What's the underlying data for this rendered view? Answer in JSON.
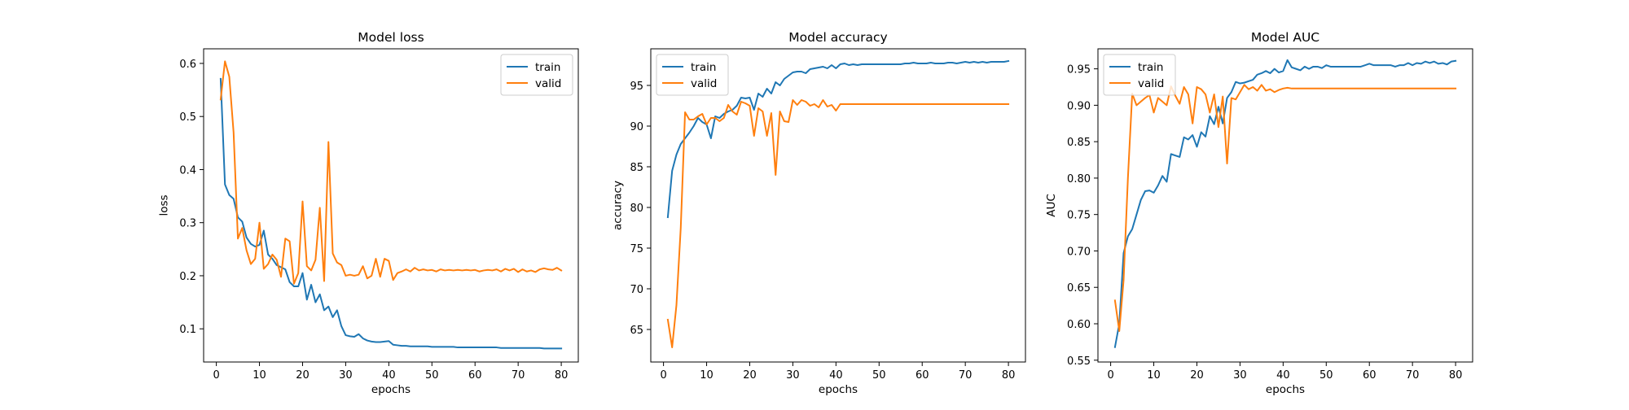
{
  "chart_data": [
    {
      "type": "line",
      "title": "Model loss",
      "xlabel": "epochs",
      "ylabel": "loss",
      "xlim": [
        -2.95,
        83.95
      ],
      "ylim": [
        0.0375,
        0.6275
      ],
      "xticks": [
        0,
        10,
        20,
        30,
        40,
        50,
        60,
        70,
        80
      ],
      "yticks": [
        0.1,
        0.2,
        0.3,
        0.4,
        0.5,
        0.6
      ],
      "ytick_labels": [
        "0.1",
        "0.2",
        "0.3",
        "0.4",
        "0.5",
        "0.6"
      ],
      "legend_position": "upper right",
      "grid": false,
      "x": [
        1,
        2,
        3,
        4,
        5,
        6,
        7,
        8,
        9,
        10,
        11,
        12,
        13,
        14,
        15,
        16,
        17,
        18,
        19,
        20,
        21,
        22,
        23,
        24,
        25,
        26,
        27,
        28,
        29,
        30,
        31,
        32,
        33,
        34,
        35,
        36,
        37,
        38,
        39,
        40,
        41,
        42,
        43,
        44,
        45,
        46,
        47,
        48,
        49,
        50,
        51,
        52,
        53,
        54,
        55,
        56,
        57,
        58,
        59,
        60,
        61,
        62,
        63,
        64,
        65,
        66,
        67,
        68,
        69,
        70,
        71,
        72,
        73,
        74,
        75,
        76,
        77,
        78,
        79,
        80
      ],
      "series": [
        {
          "name": "train",
          "color": "#1f77b4",
          "values": [
            0.571,
            0.372,
            0.352,
            0.345,
            0.31,
            0.302,
            0.272,
            0.26,
            0.255,
            0.258,
            0.285,
            0.24,
            0.232,
            0.22,
            0.216,
            0.212,
            0.188,
            0.18,
            0.18,
            0.205,
            0.155,
            0.183,
            0.15,
            0.165,
            0.135,
            0.142,
            0.122,
            0.135,
            0.105,
            0.088,
            0.086,
            0.085,
            0.09,
            0.082,
            0.078,
            0.076,
            0.075,
            0.075,
            0.076,
            0.077,
            0.07,
            0.069,
            0.068,
            0.068,
            0.067,
            0.067,
            0.067,
            0.067,
            0.067,
            0.066,
            0.066,
            0.066,
            0.066,
            0.066,
            0.066,
            0.065,
            0.065,
            0.065,
            0.065,
            0.065,
            0.065,
            0.065,
            0.065,
            0.065,
            0.065,
            0.064,
            0.064,
            0.064,
            0.064,
            0.064,
            0.064,
            0.064,
            0.064,
            0.064,
            0.064,
            0.063,
            0.063,
            0.063,
            0.063,
            0.063
          ]
        },
        {
          "name": "valid",
          "color": "#ff7f0e",
          "values": [
            0.532,
            0.604,
            0.575,
            0.47,
            0.27,
            0.29,
            0.248,
            0.222,
            0.232,
            0.3,
            0.213,
            0.222,
            0.24,
            0.23,
            0.198,
            0.27,
            0.265,
            0.185,
            0.205,
            0.34,
            0.218,
            0.21,
            0.23,
            0.328,
            0.19,
            0.452,
            0.242,
            0.225,
            0.22,
            0.2,
            0.202,
            0.2,
            0.202,
            0.218,
            0.195,
            0.2,
            0.232,
            0.198,
            0.232,
            0.228,
            0.192,
            0.205,
            0.208,
            0.212,
            0.208,
            0.215,
            0.21,
            0.212,
            0.21,
            0.211,
            0.208,
            0.212,
            0.21,
            0.211,
            0.21,
            0.211,
            0.21,
            0.211,
            0.21,
            0.211,
            0.208,
            0.21,
            0.211,
            0.21,
            0.212,
            0.208,
            0.213,
            0.21,
            0.213,
            0.207,
            0.212,
            0.208,
            0.21,
            0.207,
            0.212,
            0.214,
            0.212,
            0.211,
            0.215,
            0.21
          ]
        }
      ]
    },
    {
      "type": "line",
      "title": "Model accuracy",
      "xlabel": "epochs",
      "ylabel": "accuracy",
      "xlim": [
        -2.95,
        83.95
      ],
      "ylim": [
        61.0,
        99.5
      ],
      "xticks": [
        0,
        10,
        20,
        30,
        40,
        50,
        60,
        70,
        80
      ],
      "yticks": [
        65,
        70,
        75,
        80,
        85,
        90,
        95
      ],
      "ytick_labels": [
        "65",
        "70",
        "75",
        "80",
        "85",
        "90",
        "95"
      ],
      "legend_position": "upper left",
      "grid": false,
      "x": [
        1,
        2,
        3,
        4,
        5,
        6,
        7,
        8,
        9,
        10,
        11,
        12,
        13,
        14,
        15,
        16,
        17,
        18,
        19,
        20,
        21,
        22,
        23,
        24,
        25,
        26,
        27,
        28,
        29,
        30,
        31,
        32,
        33,
        34,
        35,
        36,
        37,
        38,
        39,
        40,
        41,
        42,
        43,
        44,
        45,
        46,
        47,
        48,
        49,
        50,
        51,
        52,
        53,
        54,
        55,
        56,
        57,
        58,
        59,
        60,
        61,
        62,
        63,
        64,
        65,
        66,
        67,
        68,
        69,
        70,
        71,
        72,
        73,
        74,
        75,
        76,
        77,
        78,
        79,
        80
      ],
      "series": [
        {
          "name": "train",
          "color": "#1f77b4",
          "values": [
            78.8,
            84.5,
            86.5,
            87.8,
            88.5,
            89.2,
            90.0,
            91.0,
            90.5,
            90.2,
            88.5,
            91.2,
            91.0,
            91.5,
            91.8,
            92.0,
            92.5,
            93.5,
            93.4,
            93.5,
            92.0,
            94.0,
            93.6,
            94.6,
            94.0,
            95.4,
            95.0,
            95.8,
            96.2,
            96.6,
            96.7,
            96.7,
            96.5,
            97.0,
            97.1,
            97.2,
            97.3,
            97.1,
            97.5,
            97.1,
            97.6,
            97.7,
            97.5,
            97.6,
            97.5,
            97.6,
            97.6,
            97.6,
            97.6,
            97.6,
            97.6,
            97.6,
            97.6,
            97.6,
            97.6,
            97.7,
            97.7,
            97.8,
            97.7,
            97.7,
            97.7,
            97.8,
            97.7,
            97.7,
            97.7,
            97.8,
            97.8,
            97.7,
            97.8,
            97.9,
            97.8,
            97.9,
            97.8,
            97.9,
            97.8,
            97.9,
            97.9,
            97.9,
            97.9,
            98.0
          ]
        },
        {
          "name": "valid",
          "color": "#ff7f0e",
          "values": [
            66.2,
            62.8,
            68.0,
            77.5,
            91.7,
            90.8,
            90.8,
            91.2,
            91.5,
            90.2,
            91.0,
            91.0,
            90.6,
            91.0,
            92.6,
            91.8,
            91.4,
            93.0,
            92.8,
            92.5,
            88.8,
            92.2,
            91.8,
            88.8,
            91.6,
            84.0,
            91.8,
            90.6,
            90.5,
            93.2,
            92.6,
            93.2,
            93.0,
            92.5,
            92.7,
            92.3,
            93.2,
            92.4,
            92.6,
            91.9,
            92.7,
            92.7,
            92.7,
            92.7,
            92.7,
            92.7,
            92.7,
            92.7,
            92.7,
            92.7,
            92.7,
            92.7,
            92.7,
            92.7,
            92.7,
            92.7,
            92.7,
            92.7,
            92.7,
            92.7,
            92.7,
            92.7,
            92.7,
            92.7,
            92.7,
            92.7,
            92.7,
            92.7,
            92.7,
            92.7,
            92.7,
            92.7,
            92.7,
            92.7,
            92.7,
            92.7,
            92.7,
            92.7,
            92.7,
            92.7
          ]
        }
      ]
    },
    {
      "type": "line",
      "title": "Model AUC",
      "xlabel": "epochs",
      "ylabel": "AUC",
      "xlim": [
        -2.95,
        83.95
      ],
      "ylim": [
        0.5475,
        0.9775
      ],
      "xticks": [
        0,
        10,
        20,
        30,
        40,
        50,
        60,
        70,
        80
      ],
      "yticks": [
        0.55,
        0.6,
        0.65,
        0.7,
        0.75,
        0.8,
        0.85,
        0.9,
        0.95
      ],
      "ytick_labels": [
        "0.55",
        "0.60",
        "0.65",
        "0.70",
        "0.75",
        "0.80",
        "0.85",
        "0.90",
        "0.95"
      ],
      "legend_position": "upper left",
      "grid": false,
      "x": [
        1,
        2,
        3,
        4,
        5,
        6,
        7,
        8,
        9,
        10,
        11,
        12,
        13,
        14,
        15,
        16,
        17,
        18,
        19,
        20,
        21,
        22,
        23,
        24,
        25,
        26,
        27,
        28,
        29,
        30,
        31,
        32,
        33,
        34,
        35,
        36,
        37,
        38,
        39,
        40,
        41,
        42,
        43,
        44,
        45,
        46,
        47,
        48,
        49,
        50,
        51,
        52,
        53,
        54,
        55,
        56,
        57,
        58,
        59,
        60,
        61,
        62,
        63,
        64,
        65,
        66,
        67,
        68,
        69,
        70,
        71,
        72,
        73,
        74,
        75,
        76,
        77,
        78,
        79,
        80
      ],
      "series": [
        {
          "name": "train",
          "color": "#1f77b4",
          "values": [
            0.568,
            0.6,
            0.697,
            0.72,
            0.73,
            0.75,
            0.77,
            0.782,
            0.783,
            0.78,
            0.79,
            0.803,
            0.795,
            0.833,
            0.831,
            0.829,
            0.856,
            0.853,
            0.859,
            0.843,
            0.863,
            0.857,
            0.885,
            0.874,
            0.898,
            0.875,
            0.91,
            0.918,
            0.932,
            0.93,
            0.931,
            0.933,
            0.935,
            0.942,
            0.944,
            0.947,
            0.944,
            0.95,
            0.945,
            0.947,
            0.962,
            0.952,
            0.95,
            0.948,
            0.953,
            0.95,
            0.953,
            0.953,
            0.951,
            0.955,
            0.953,
            0.953,
            0.953,
            0.953,
            0.953,
            0.953,
            0.953,
            0.953,
            0.955,
            0.957,
            0.955,
            0.955,
            0.955,
            0.955,
            0.955,
            0.953,
            0.955,
            0.955,
            0.958,
            0.955,
            0.958,
            0.957,
            0.96,
            0.958,
            0.96,
            0.957,
            0.958,
            0.956,
            0.96,
            0.961
          ]
        },
        {
          "name": "valid",
          "color": "#ff7f0e",
          "values": [
            0.632,
            0.59,
            0.66,
            0.8,
            0.916,
            0.9,
            0.905,
            0.91,
            0.914,
            0.89,
            0.91,
            0.905,
            0.9,
            0.926,
            0.913,
            0.902,
            0.925,
            0.915,
            0.875,
            0.925,
            0.922,
            0.915,
            0.89,
            0.915,
            0.87,
            0.912,
            0.82,
            0.91,
            0.908,
            0.918,
            0.928,
            0.922,
            0.925,
            0.92,
            0.928,
            0.92,
            0.922,
            0.918,
            0.921,
            0.923,
            0.924,
            0.923,
            0.923,
            0.923,
            0.923,
            0.923,
            0.923,
            0.923,
            0.923,
            0.923,
            0.923,
            0.923,
            0.923,
            0.923,
            0.923,
            0.923,
            0.923,
            0.923,
            0.923,
            0.923,
            0.923,
            0.923,
            0.923,
            0.923,
            0.923,
            0.923,
            0.923,
            0.923,
            0.923,
            0.923,
            0.923,
            0.923,
            0.923,
            0.923,
            0.923,
            0.923,
            0.923,
            0.923,
            0.923,
            0.923
          ]
        }
      ]
    }
  ]
}
